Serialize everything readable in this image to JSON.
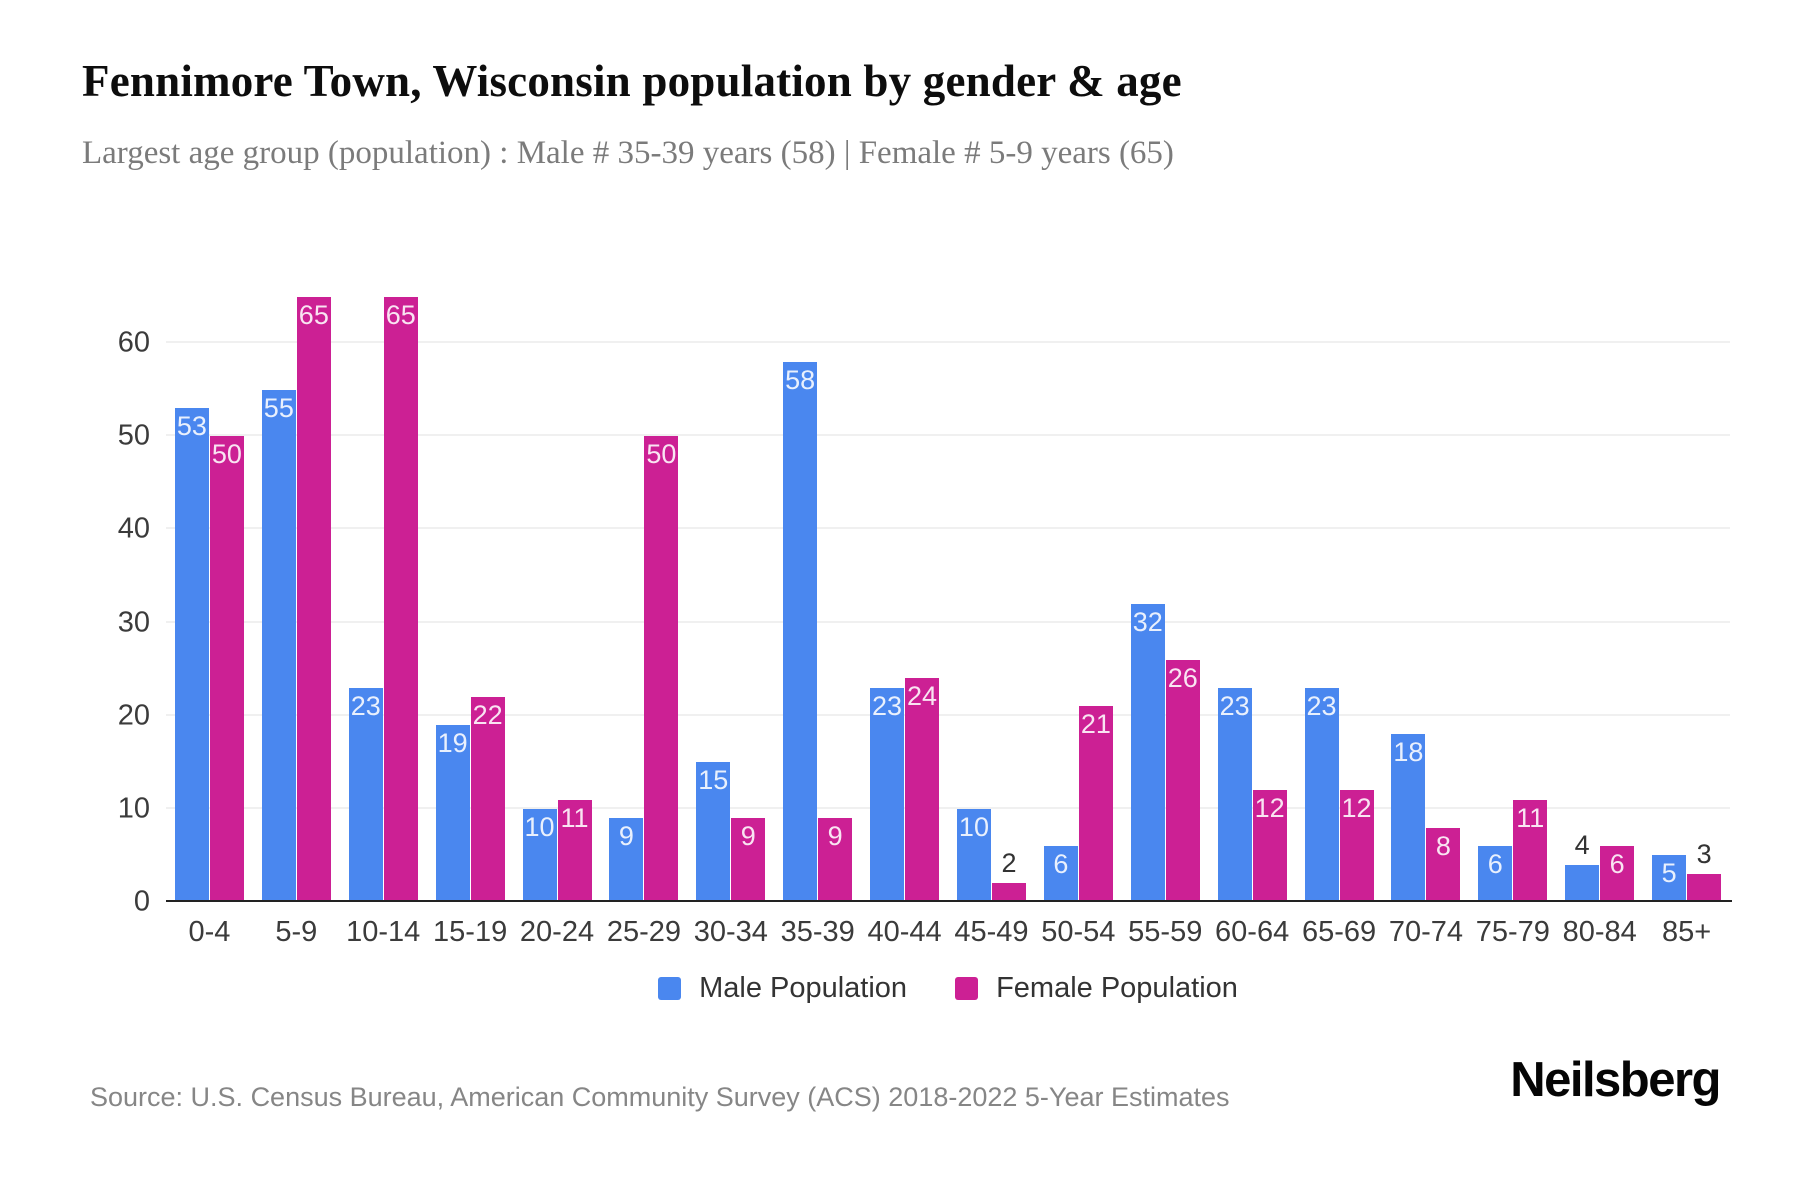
{
  "header": {
    "title": "Fennimore Town, Wisconsin population by gender & age",
    "subtitle": "Largest age group (population) : Male # 35-39 years (58) | Female # 5-9 years (65)"
  },
  "chart_data": {
    "type": "bar",
    "title": "Fennimore Town, Wisconsin population by gender & age",
    "categories": [
      "0-4",
      "5-9",
      "10-14",
      "15-19",
      "20-24",
      "25-29",
      "30-34",
      "35-39",
      "40-44",
      "45-49",
      "50-54",
      "55-59",
      "60-64",
      "65-69",
      "70-74",
      "75-79",
      "80-84",
      "85+"
    ],
    "series": [
      {
        "name": "Male Population",
        "color": "#4A87EF",
        "values": [
          53,
          55,
          23,
          19,
          10,
          9,
          15,
          58,
          23,
          10,
          6,
          32,
          23,
          23,
          18,
          6,
          4,
          5
        ]
      },
      {
        "name": "Female Population",
        "color": "#CC2094",
        "values": [
          50,
          65,
          65,
          22,
          11,
          50,
          9,
          9,
          24,
          2,
          21,
          26,
          12,
          12,
          8,
          11,
          6,
          3
        ]
      }
    ],
    "xlabel": "",
    "ylabel": "",
    "yticks": [
      0,
      10,
      20,
      30,
      40,
      50,
      60
    ],
    "ylim": [
      0,
      70
    ],
    "grid": "horizontal",
    "legend_position": "bottom",
    "value_labels": true,
    "value_label_outside_threshold": 5
  },
  "legend": {
    "items": [
      {
        "label": "Male Population",
        "color": "#4A87EF"
      },
      {
        "label": "Female Population",
        "color": "#CC2094"
      }
    ]
  },
  "footer": {
    "source": "Source: U.S. Census Bureau, American Community Survey (ACS) 2018-2022 5-Year Estimates",
    "brand": "Neilsberg"
  },
  "colors": {
    "male": "#4A87EF",
    "female": "#CC2094",
    "grid": "#F0F0F0",
    "axis": "#222222",
    "label_inside": "rgba(255,255,255,0.88)",
    "label_outside": "#333333"
  }
}
